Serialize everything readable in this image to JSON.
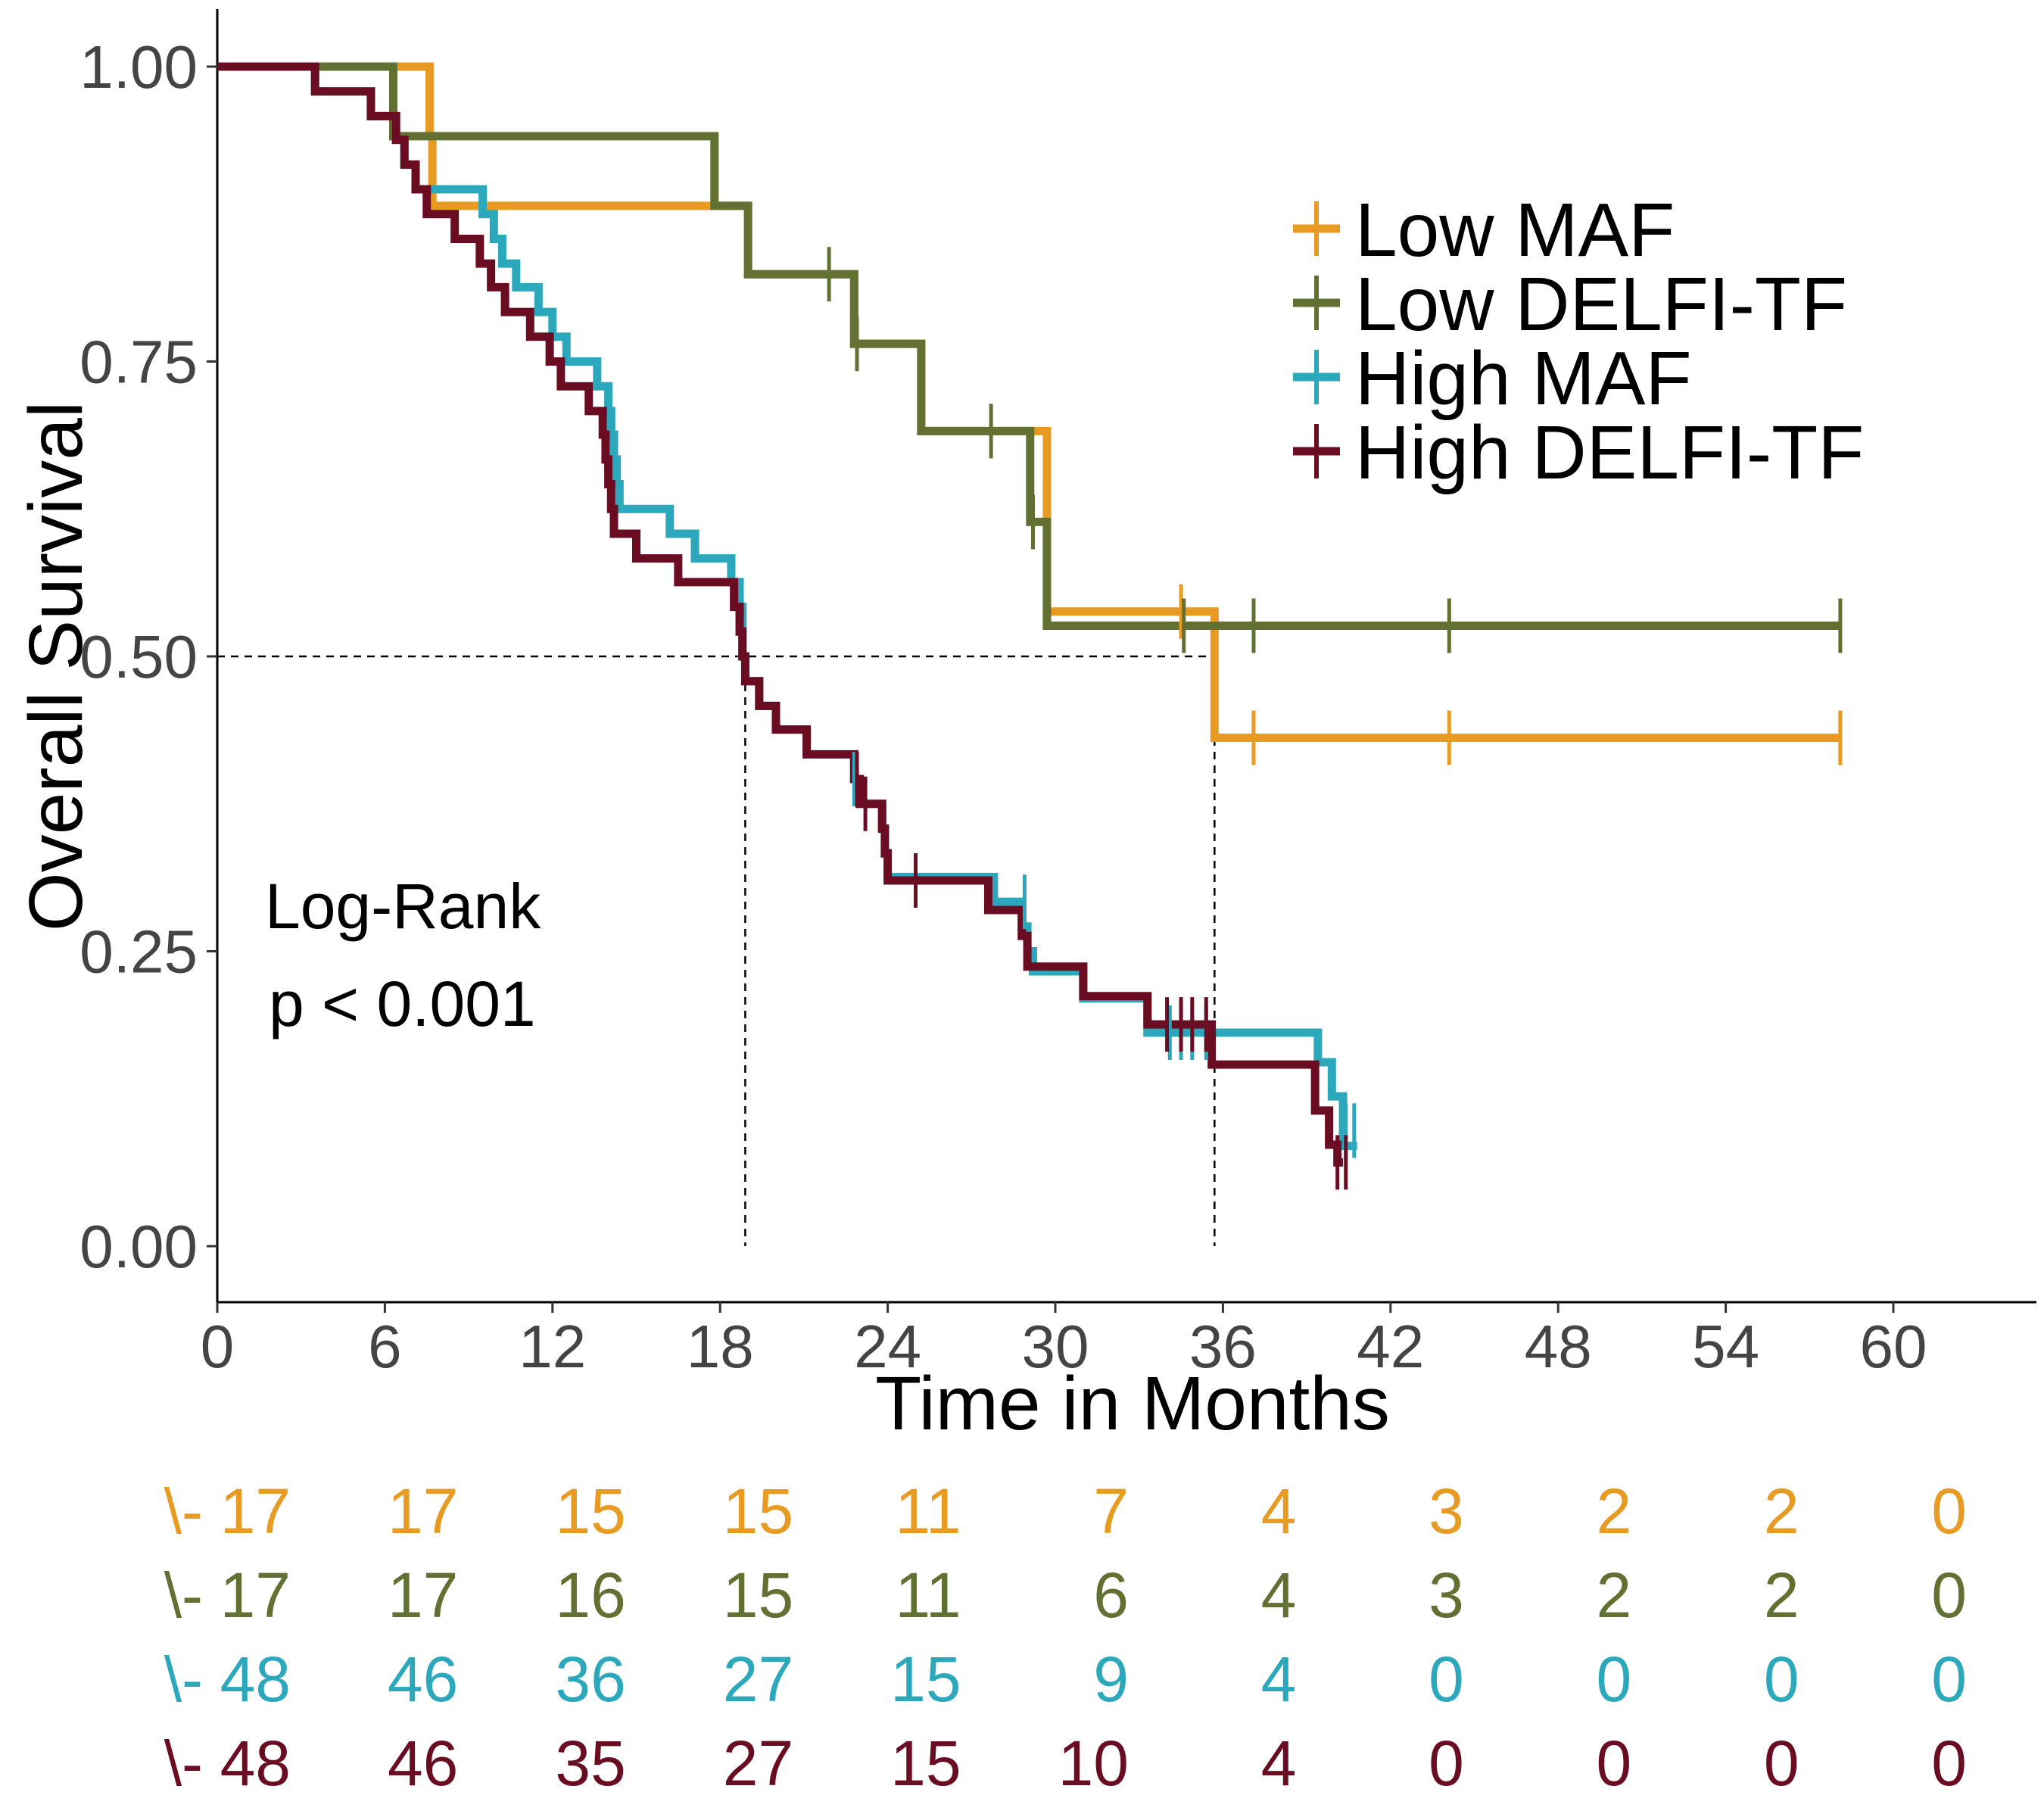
{
  "chart_data": {
    "type": "line",
    "subtype": "kaplan-meier",
    "title": "",
    "xlabel": "Time in Months",
    "ylabel": "Overall Survival",
    "xlim": [
      -3,
      62
    ],
    "ylim": [
      -0.05,
      1.05
    ],
    "x_ticks": [
      0,
      6,
      12,
      18,
      24,
      30,
      36,
      42,
      48,
      54,
      60
    ],
    "y_ticks": [
      0.0,
      0.25,
      0.5,
      0.75,
      1.0
    ],
    "y_tick_labels": [
      "0.00",
      "0.25",
      "0.50",
      "0.75",
      "1.00"
    ],
    "grid": false,
    "legend_position": "top-right",
    "annotation": {
      "line1": "Log-Rank",
      "line2": "p < 0.001"
    },
    "median_lines": {
      "y": 0.5,
      "x": [
        18.9,
        35.7
      ]
    },
    "series": [
      {
        "name": "Low MAF",
        "color": "#E89B23",
        "steps": [
          [
            0,
            1.0
          ],
          [
            7.6,
            0.941
          ],
          [
            7.7,
            0.882
          ],
          [
            19.0,
            0.824
          ],
          [
            22.8,
            0.765
          ],
          [
            25.2,
            0.691
          ],
          [
            29.7,
            0.538
          ],
          [
            35.7,
            0.431
          ],
          [
            58.1,
            0.431
          ]
        ],
        "censor": [
          [
            34.5,
            0.538
          ],
          [
            37.1,
            0.431
          ],
          [
            44.1,
            0.431
          ],
          [
            58.1,
            0.431
          ]
        ]
      },
      {
        "name": "Low DELFI-TF",
        "color": "#627032",
        "steps": [
          [
            0,
            1.0
          ],
          [
            6.3,
            0.941
          ],
          [
            17.8,
            0.882
          ],
          [
            19.0,
            0.824
          ],
          [
            22.8,
            0.765
          ],
          [
            25.2,
            0.691
          ],
          [
            29.1,
            0.614
          ],
          [
            29.7,
            0.526
          ],
          [
            58.1,
            0.526
          ]
        ],
        "censor": [
          [
            21.9,
            0.824
          ],
          [
            22.9,
            0.765
          ],
          [
            27.7,
            0.691
          ],
          [
            29.2,
            0.614
          ],
          [
            34.6,
            0.526
          ],
          [
            37.1,
            0.526
          ],
          [
            44.1,
            0.526
          ],
          [
            58.1,
            0.526
          ]
        ]
      },
      {
        "name": "High MAF",
        "color": "#2CA8BC",
        "steps": [
          [
            0,
            1.0
          ],
          [
            3.5,
            0.979
          ],
          [
            5.5,
            0.958
          ],
          [
            6.4,
            0.938
          ],
          [
            6.7,
            0.917
          ],
          [
            7.1,
            0.896
          ],
          [
            9.5,
            0.875
          ],
          [
            9.9,
            0.854
          ],
          [
            10.2,
            0.833
          ],
          [
            10.7,
            0.813
          ],
          [
            11.5,
            0.792
          ],
          [
            12.0,
            0.771
          ],
          [
            12.5,
            0.75
          ],
          [
            13.6,
            0.729
          ],
          [
            14.0,
            0.708
          ],
          [
            14.1,
            0.688
          ],
          [
            14.2,
            0.667
          ],
          [
            14.3,
            0.646
          ],
          [
            14.4,
            0.625
          ],
          [
            16.2,
            0.604
          ],
          [
            17.1,
            0.583
          ],
          [
            18.4,
            0.563
          ],
          [
            18.7,
            0.542
          ],
          [
            18.8,
            0.5
          ],
          [
            18.9,
            0.479
          ],
          [
            19.4,
            0.458
          ],
          [
            20.0,
            0.438
          ],
          [
            21.1,
            0.417
          ],
          [
            22.8,
            0.396
          ],
          [
            23.0,
            0.375
          ],
          [
            23.8,
            0.354
          ],
          [
            23.9,
            0.333
          ],
          [
            24.0,
            0.313
          ],
          [
            27.8,
            0.292
          ],
          [
            28.8,
            0.271
          ],
          [
            29.0,
            0.25
          ],
          [
            29.2,
            0.233
          ],
          [
            31.0,
            0.21
          ],
          [
            33.3,
            0.181
          ],
          [
            39.4,
            0.156
          ],
          [
            39.9,
            0.127
          ],
          [
            40.3,
            0.085
          ],
          [
            40.8,
            0.085
          ]
        ],
        "censor": [
          [
            22.8,
            0.396
          ],
          [
            28.9,
            0.292
          ],
          [
            34.1,
            0.181
          ],
          [
            34.5,
            0.181
          ],
          [
            34.9,
            0.181
          ],
          [
            35.4,
            0.181
          ],
          [
            40.4,
            0.098
          ],
          [
            40.7,
            0.098
          ]
        ]
      },
      {
        "name": "High DELFI-TF",
        "color": "#6A0D23",
        "steps": [
          [
            0,
            1.0
          ],
          [
            3.5,
            0.979
          ],
          [
            5.5,
            0.958
          ],
          [
            6.4,
            0.938
          ],
          [
            6.7,
            0.917
          ],
          [
            7.1,
            0.896
          ],
          [
            7.5,
            0.875
          ],
          [
            8.5,
            0.854
          ],
          [
            9.4,
            0.833
          ],
          [
            9.8,
            0.813
          ],
          [
            10.3,
            0.792
          ],
          [
            11.2,
            0.771
          ],
          [
            11.9,
            0.75
          ],
          [
            12.3,
            0.729
          ],
          [
            13.3,
            0.708
          ],
          [
            13.8,
            0.688
          ],
          [
            13.9,
            0.667
          ],
          [
            14.0,
            0.646
          ],
          [
            14.1,
            0.625
          ],
          [
            14.2,
            0.604
          ],
          [
            15.0,
            0.583
          ],
          [
            16.5,
            0.563
          ],
          [
            18.5,
            0.542
          ],
          [
            18.7,
            0.521
          ],
          [
            18.8,
            0.5
          ],
          [
            18.9,
            0.479
          ],
          [
            19.4,
            0.458
          ],
          [
            20.0,
            0.438
          ],
          [
            21.1,
            0.417
          ],
          [
            22.8,
            0.396
          ],
          [
            23.0,
            0.375
          ],
          [
            23.8,
            0.354
          ],
          [
            23.9,
            0.333
          ],
          [
            24.0,
            0.31
          ],
          [
            27.6,
            0.285
          ],
          [
            28.8,
            0.263
          ],
          [
            29.0,
            0.237
          ],
          [
            31.0,
            0.212
          ],
          [
            33.3,
            0.188
          ],
          [
            35.6,
            0.154
          ],
          [
            39.3,
            0.115
          ],
          [
            39.8,
            0.086
          ],
          [
            40.1,
            0.071
          ],
          [
            40.3,
            0.071
          ]
        ],
        "censor": [
          [
            22.9,
            0.396
          ],
          [
            23.2,
            0.375
          ],
          [
            25.0,
            0.31
          ],
          [
            34.0,
            0.188
          ],
          [
            34.5,
            0.188
          ],
          [
            34.9,
            0.188
          ],
          [
            35.4,
            0.188
          ],
          [
            40.1,
            0.071
          ],
          [
            40.4,
            0.071
          ]
        ]
      }
    ],
    "risk_table": {
      "row_label": "\\-",
      "times": [
        0,
        6,
        12,
        18,
        24,
        30,
        36,
        42,
        48,
        54,
        60
      ],
      "rows": [
        {
          "color": "#E89B23",
          "values": [
            "17",
            "17",
            "15",
            "15",
            "11",
            "7",
            "4",
            "3",
            "2",
            "2",
            "0"
          ]
        },
        {
          "color": "#627032",
          "values": [
            "17",
            "17",
            "16",
            "15",
            "11",
            "6",
            "4",
            "3",
            "2",
            "2",
            "0"
          ]
        },
        {
          "color": "#2CA8BC",
          "values": [
            "48",
            "46",
            "36",
            "27",
            "15",
            "9",
            "4",
            "0",
            "0",
            "0",
            "0"
          ]
        },
        {
          "color": "#6A0D23",
          "values": [
            "48",
            "46",
            "35",
            "27",
            "15",
            "10",
            "4",
            "0",
            "0",
            "0",
            "0"
          ]
        }
      ]
    }
  }
}
